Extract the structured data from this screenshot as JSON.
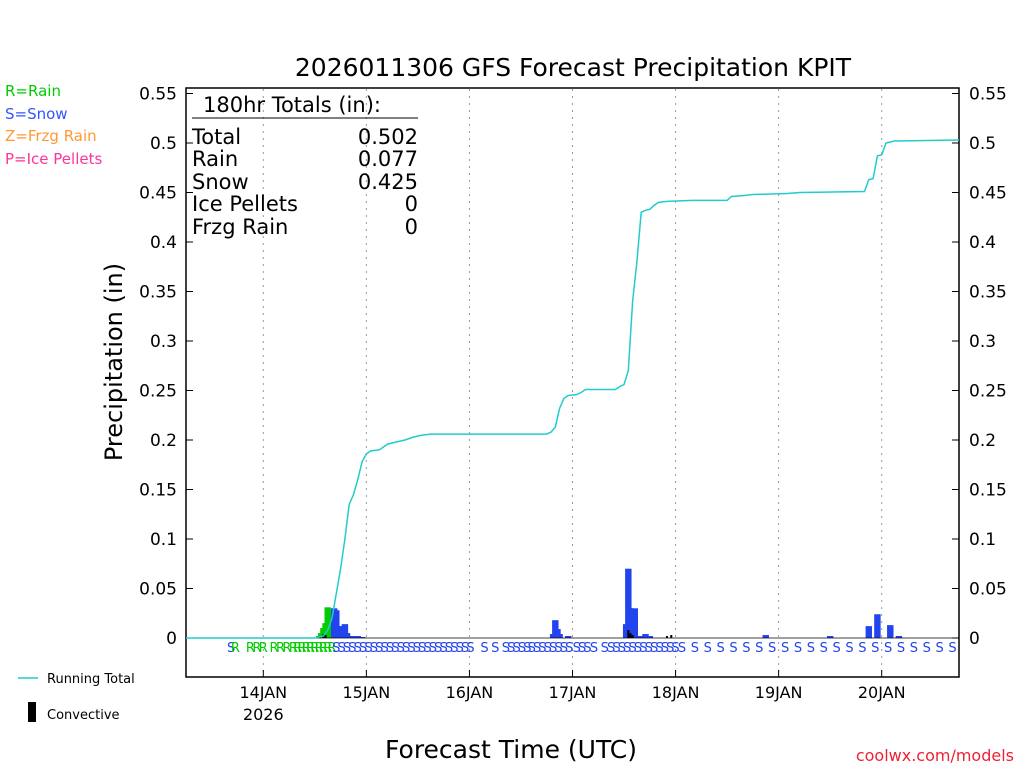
{
  "chart_data": {
    "type": "bar",
    "title": "2026011306 GFS Forecast Precipitation KPIT",
    "xlabel": "Forecast Time (UTC)",
    "ylabel": "Precipitation (in)",
    "ylim": [
      0,
      0.55
    ],
    "y_below_zero": -0.04,
    "xlim": [
      0,
      180
    ],
    "grid": "vertical dotted at day boundaries",
    "y_ticks": [
      0,
      0.05,
      0.1,
      0.15,
      0.2,
      0.25,
      0.3,
      0.35,
      0.4,
      0.45,
      0.5,
      0.55
    ],
    "y_tick_labels": [
      "0",
      "0.05",
      "0.1",
      "0.15",
      "0.2",
      "0.25",
      "0.3",
      "0.35",
      "0.4",
      "0.45",
      "0.5",
      "0.55"
    ],
    "x_ticks": [
      {
        "hour": 18,
        "label": "14JAN",
        "sublabel": "2026"
      },
      {
        "hour": 42,
        "label": "15JAN",
        "sublabel": ""
      },
      {
        "hour": 66,
        "label": "16JAN",
        "sublabel": ""
      },
      {
        "hour": 90,
        "label": "17JAN",
        "sublabel": ""
      },
      {
        "hour": 114,
        "label": "18JAN",
        "sublabel": ""
      },
      {
        "hour": 138,
        "label": "19JAN",
        "sublabel": ""
      },
      {
        "hour": 162,
        "label": "20JAN",
        "sublabel": ""
      }
    ],
    "type_legend": [
      {
        "label": "R=Rain",
        "color": "#00cc00"
      },
      {
        "label": "S=Snow",
        "color": "#3355ff"
      },
      {
        "label": "Z=Frzg Rain",
        "color": "#ff9933"
      },
      {
        "label": "P=Ice Pellets",
        "color": "#ff3399"
      }
    ],
    "series_legend": [
      {
        "label": "Running Total",
        "color": "#22cccc",
        "kind": "line"
      },
      {
        "label": "Convective",
        "color": "#000000",
        "kind": "bar"
      }
    ],
    "totals_box": {
      "header": "180hr Totals (in):",
      "rows": [
        {
          "label": "Total",
          "value": "0.502"
        },
        {
          "label": "Rain",
          "value": "0.077"
        },
        {
          "label": "Snow",
          "value": "0.425"
        },
        {
          "label": "Ice Pellets",
          "value": "0"
        },
        {
          "label": "Frzg Rain",
          "value": "0"
        }
      ]
    },
    "running_total": [
      [
        0,
        0
      ],
      [
        30,
        0
      ],
      [
        32,
        0.002
      ],
      [
        33,
        0.008
      ],
      [
        34,
        0.02
      ],
      [
        35,
        0.045
      ],
      [
        36,
        0.07
      ],
      [
        37,
        0.1
      ],
      [
        38,
        0.135
      ],
      [
        39,
        0.145
      ],
      [
        40,
        0.16
      ],
      [
        41,
        0.178
      ],
      [
        42,
        0.186
      ],
      [
        43,
        0.189
      ],
      [
        45,
        0.19
      ],
      [
        47,
        0.196
      ],
      [
        49,
        0.198
      ],
      [
        51,
        0.2
      ],
      [
        53,
        0.203
      ],
      [
        55,
        0.205
      ],
      [
        57,
        0.206
      ],
      [
        84,
        0.206
      ],
      [
        85,
        0.208
      ],
      [
        86,
        0.213
      ],
      [
        87,
        0.232
      ],
      [
        88,
        0.242
      ],
      [
        89,
        0.245
      ],
      [
        91,
        0.246
      ],
      [
        92,
        0.248
      ],
      [
        93,
        0.251
      ],
      [
        100,
        0.251
      ],
      [
        101,
        0.254
      ],
      [
        102,
        0.256
      ],
      [
        103,
        0.27
      ],
      [
        104,
        0.34
      ],
      [
        105,
        0.38
      ],
      [
        106,
        0.43
      ],
      [
        107,
        0.432
      ],
      [
        108,
        0.433
      ],
      [
        109,
        0.437
      ],
      [
        110,
        0.44
      ],
      [
        112,
        0.441
      ],
      [
        118,
        0.442
      ],
      [
        124,
        0.442
      ],
      [
        126,
        0.442
      ],
      [
        127,
        0.446
      ],
      [
        130,
        0.447
      ],
      [
        132,
        0.448
      ],
      [
        140,
        0.449
      ],
      [
        143,
        0.45
      ],
      [
        158,
        0.451
      ],
      [
        159,
        0.463
      ],
      [
        160,
        0.464
      ],
      [
        161,
        0.487
      ],
      [
        162,
        0.488
      ],
      [
        163,
        0.5
      ],
      [
        165,
        0.502
      ],
      [
        180,
        0.503
      ]
    ],
    "bars": [
      {
        "hour": 31,
        "value": 0.002,
        "type": "rain"
      },
      {
        "hour": 31.5,
        "value": 0.005,
        "type": "rain"
      },
      {
        "hour": 32,
        "value": 0.01,
        "type": "rain"
      },
      {
        "hour": 32.5,
        "value": 0.015,
        "type": "rain"
      },
      {
        "hour": 33,
        "value": 0.031,
        "type": "rain"
      },
      {
        "hour": 33.5,
        "value": 0.025,
        "type": "rain"
      },
      {
        "hour": 34,
        "value": 0.016,
        "type": "rain"
      },
      {
        "hour": 34.5,
        "value": 0.03,
        "type": "snow"
      },
      {
        "hour": 35,
        "value": 0.028,
        "type": "snow"
      },
      {
        "hour": 35.5,
        "value": 0.012,
        "type": "snow"
      },
      {
        "hour": 36,
        "value": 0.01,
        "type": "snow"
      },
      {
        "hour": 36.5,
        "value": 0.012,
        "type": "snow"
      },
      {
        "hour": 37,
        "value": 0.014,
        "type": "snow"
      },
      {
        "hour": 37.5,
        "value": 0.005,
        "type": "snow"
      },
      {
        "hour": 38,
        "value": 0.002,
        "type": "snow"
      },
      {
        "hour": 39,
        "value": 0.002,
        "type": "snow"
      },
      {
        "hour": 40,
        "value": 0.002,
        "type": "snow"
      },
      {
        "hour": 41,
        "value": 0.001,
        "type": "snow"
      },
      {
        "hour": 85.5,
        "value": 0.004,
        "type": "snow"
      },
      {
        "hour": 86,
        "value": 0.018,
        "type": "snow"
      },
      {
        "hour": 86.5,
        "value": 0.009,
        "type": "snow"
      },
      {
        "hour": 87,
        "value": 0.004,
        "type": "snow"
      },
      {
        "hour": 89,
        "value": 0.002,
        "type": "snow"
      },
      {
        "hour": 102.5,
        "value": 0.014,
        "type": "snow"
      },
      {
        "hour": 103,
        "value": 0.07,
        "type": "snow"
      },
      {
        "hour": 103.5,
        "value": 0.03,
        "type": "snow"
      },
      {
        "hour": 104,
        "value": 0.029,
        "type": "snow"
      },
      {
        "hour": 104.5,
        "value": 0.03,
        "type": "snow"
      },
      {
        "hour": 106,
        "value": 0.002,
        "type": "snow"
      },
      {
        "hour": 107,
        "value": 0.004,
        "type": "snow"
      },
      {
        "hour": 108,
        "value": 0.002,
        "type": "snow"
      },
      {
        "hour": 135,
        "value": 0.003,
        "type": "snow"
      },
      {
        "hour": 150,
        "value": 0.002,
        "type": "snow"
      },
      {
        "hour": 159,
        "value": 0.012,
        "type": "snow"
      },
      {
        "hour": 161,
        "value": 0.024,
        "type": "snow"
      },
      {
        "hour": 164,
        "value": 0.013,
        "type": "snow"
      },
      {
        "hour": 166,
        "value": 0.002,
        "type": "snow"
      }
    ],
    "convective": [
      {
        "hour": 32,
        "value": 0.004
      },
      {
        "hour": 32.5,
        "value": 0.003
      },
      {
        "hour": 103,
        "value": 0.008
      },
      {
        "hour": 103.5,
        "value": 0.005
      },
      {
        "hour": 104,
        "value": 0.003
      },
      {
        "hour": 112,
        "value": 0.002
      },
      {
        "hour": 113,
        "value": 0.003
      }
    ],
    "ptype_row": [
      {
        "hour": 10.5,
        "code": "S"
      },
      {
        "hour": 11.5,
        "code": "R"
      },
      {
        "hour": 15,
        "code": "R"
      },
      {
        "hour": 16.5,
        "code": "R"
      },
      {
        "hour": 18,
        "code": "R"
      },
      {
        "hour": 20.5,
        "code": "R"
      },
      {
        "hour": 22,
        "code": "R"
      },
      {
        "hour": 23.5,
        "code": "R"
      },
      {
        "hour": 25,
        "code": "R"
      },
      {
        "hour": 26,
        "code": "R"
      },
      {
        "hour": 27,
        "code": "R"
      },
      {
        "hour": 28,
        "code": "R"
      },
      {
        "hour": 29,
        "code": "R"
      },
      {
        "hour": 30,
        "code": "R"
      },
      {
        "hour": 31,
        "code": "R"
      },
      {
        "hour": 32,
        "code": "R"
      },
      {
        "hour": 33,
        "code": "R"
      },
      {
        "hour": 34,
        "code": "R"
      }
    ],
    "snow_row_ranges": [
      {
        "start": 35,
        "end": 66.5,
        "step": 1.25
      },
      {
        "start": 69.5,
        "end": 72,
        "step": 2.5
      },
      {
        "start": 74.5,
        "end": 79.5,
        "step": 1.25
      },
      {
        "start": 80.5,
        "end": 89.5,
        "step": 1.25
      },
      {
        "start": 91,
        "end": 93.5,
        "step": 1.25
      },
      {
        "start": 95,
        "end": 97.5,
        "step": 2.5
      },
      {
        "start": 99,
        "end": 114,
        "step": 1.25
      },
      {
        "start": 115.5,
        "end": 180,
        "step": 3
      }
    ],
    "site_credit": "coolwx.com/models",
    "colors": {
      "rain": "#00cc00",
      "snow": "#2244ee",
      "running_total": "#22cccc",
      "convective": "#000000",
      "credit": "#ee2233"
    }
  }
}
